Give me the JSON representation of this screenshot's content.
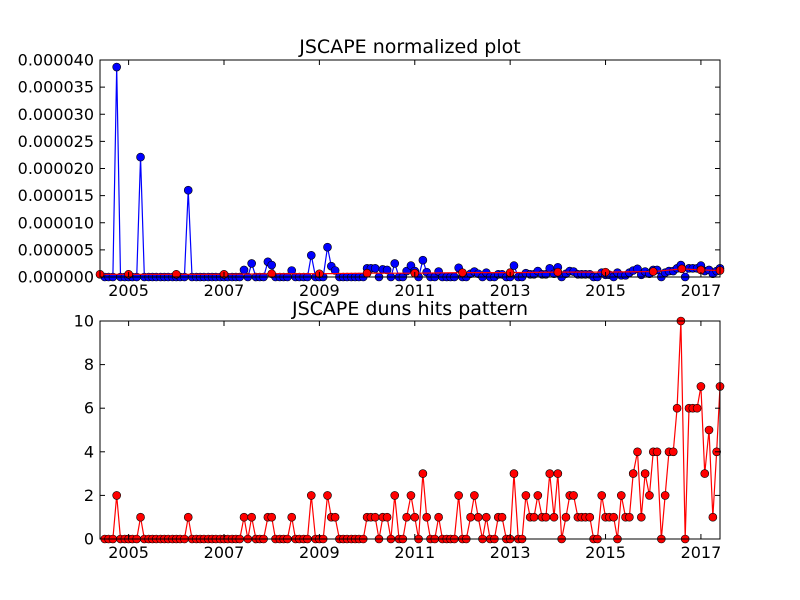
{
  "chart_data": [
    {
      "type": "line",
      "title": "JSCAPE normalized plot",
      "xlabel": "",
      "ylabel": "",
      "x_range": [
        2004.4,
        2017.4
      ],
      "ylim": [
        0,
        4e-05
      ],
      "x_ticks": [
        2005,
        2007,
        2009,
        2011,
        2013,
        2015,
        2017
      ],
      "y_ticks": [
        0.0,
        5e-06,
        1e-05,
        1.5e-05,
        2e-05,
        2.5e-05,
        3e-05,
        3.5e-05,
        4e-05
      ],
      "y_tick_labels": [
        "0.000000",
        "0.000005",
        "0.000010",
        "0.000015",
        "0.000020",
        "0.000025",
        "0.000030",
        "0.000035",
        "0.000040"
      ],
      "grid": false,
      "legend": "none",
      "series": [
        {
          "color": "#0000ff",
          "marker": "circle",
          "x": [
            2004.5,
            2004.58,
            2004.67,
            2004.75,
            2004.83,
            2004.92,
            2005.0,
            2005.08,
            2005.17,
            2005.25,
            2005.33,
            2005.42,
            2005.5,
            2005.58,
            2005.67,
            2005.75,
            2005.83,
            2005.92,
            2006.0,
            2006.08,
            2006.17,
            2006.25,
            2006.33,
            2006.42,
            2006.5,
            2006.58,
            2006.67,
            2006.75,
            2006.83,
            2006.92,
            2007.0,
            2007.08,
            2007.17,
            2007.25,
            2007.33,
            2007.42,
            2007.5,
            2007.58,
            2007.67,
            2007.75,
            2007.83,
            2007.92,
            2008.0,
            2008.08,
            2008.17,
            2008.25,
            2008.33,
            2008.42,
            2008.5,
            2008.58,
            2008.67,
            2008.75,
            2008.83,
            2008.92,
            2009.0,
            2009.08,
            2009.17,
            2009.25,
            2009.33,
            2009.42,
            2009.5,
            2009.58,
            2009.67,
            2009.75,
            2009.83,
            2009.92,
            2010.0,
            2010.08,
            2010.17,
            2010.25,
            2010.33,
            2010.42,
            2010.5,
            2010.58,
            2010.67,
            2010.75,
            2010.83,
            2010.92,
            2011.0,
            2011.08,
            2011.17,
            2011.25,
            2011.33,
            2011.42,
            2011.5,
            2011.58,
            2011.67,
            2011.75,
            2011.83,
            2011.92,
            2012.0,
            2012.08,
            2012.17,
            2012.25,
            2012.33,
            2012.42,
            2012.5,
            2012.58,
            2012.67,
            2012.75,
            2012.83,
            2012.92,
            2013.0,
            2013.08,
            2013.17,
            2013.25,
            2013.33,
            2013.42,
            2013.5,
            2013.58,
            2013.67,
            2013.75,
            2013.83,
            2013.92,
            2014.0,
            2014.08,
            2014.17,
            2014.25,
            2014.33,
            2014.42,
            2014.5,
            2014.58,
            2014.67,
            2014.75,
            2014.83,
            2014.92,
            2015.0,
            2015.08,
            2015.17,
            2015.25,
            2015.33,
            2015.42,
            2015.5,
            2015.58,
            2015.67,
            2015.75,
            2015.83,
            2015.92,
            2016.0,
            2016.08,
            2016.17,
            2016.25,
            2016.33,
            2016.42,
            2016.5,
            2016.58,
            2016.67,
            2016.75,
            2016.83,
            2016.92,
            2017.0,
            2017.08,
            2017.17,
            2017.25,
            2017.33,
            2017.4
          ],
          "values": [
            0.0,
            0.0,
            0.0,
            3.87e-05,
            0.0,
            0.0,
            0.0,
            0.0,
            0.0,
            2.21e-05,
            0.0,
            0.0,
            0.0,
            0.0,
            0.0,
            0.0,
            0.0,
            0.0,
            0.0,
            0.0,
            0.0,
            1.6e-05,
            0.0,
            0.0,
            0.0,
            0.0,
            0.0,
            0.0,
            0.0,
            0.0,
            0.0,
            0.0,
            0.0,
            0.0,
            0.0,
            1.3e-06,
            0.0,
            2.5e-06,
            0.0,
            0.0,
            0.0,
            2.8e-06,
            2.2e-06,
            0.0,
            0.0,
            0.0,
            0.0,
            1.2e-06,
            0.0,
            0.0,
            0.0,
            0.0,
            4e-06,
            0.0,
            0.0,
            0.0,
            5.5e-06,
            2e-06,
            1.2e-06,
            0.0,
            0.0,
            0.0,
            0.0,
            0.0,
            0.0,
            0.0,
            1.6e-06,
            1.6e-06,
            1.6e-06,
            0.0,
            1.4e-06,
            1.3e-06,
            0.0,
            2.5e-06,
            0.0,
            0.0,
            1.1e-06,
            2.1e-06,
            1.1e-06,
            0.0,
            3.1e-06,
            9e-07,
            0.0,
            0.0,
            1e-06,
            0.0,
            0.0,
            0.0,
            0.0,
            1.7e-06,
            0.0,
            0.0,
            6e-07,
            1e-06,
            6e-07,
            0.0,
            8e-07,
            0.0,
            0.0,
            5e-07,
            5e-07,
            0.0,
            0.0,
            2.1e-06,
            0.0,
            0.0,
            7e-07,
            5e-07,
            5e-07,
            1.1e-06,
            5e-07,
            5e-07,
            1.6e-06,
            6e-07,
            1.8e-06,
            0.0,
            6e-07,
            1.1e-06,
            1e-06,
            5e-07,
            5e-07,
            5e-07,
            5e-07,
            0.0,
            0.0,
            8e-07,
            4e-07,
            4e-07,
            0.0,
            8e-07,
            3e-07,
            3e-07,
            8e-07,
            1.2e-06,
            1.5e-06,
            4e-07,
            1e-06,
            6e-07,
            1.3e-06,
            1.3e-06,
            0.0,
            8e-07,
            1.1e-06,
            1.1e-06,
            1.6e-06,
            2.2e-06,
            0.0,
            1.6e-06,
            1.6e-06,
            1.6e-06,
            2.1e-06,
            1.1e-06,
            1.3e-06,
            6e-07,
            1.1e-06,
            1.6e-06
          ]
        },
        {
          "color": "#ff0000",
          "marker": "circle",
          "x": [
            2004.4,
            2005.0,
            2006.0,
            2007.0,
            2008.0,
            2009.0,
            2010.0,
            2011.0,
            2012.0,
            2013.0,
            2014.0,
            2015.0,
            2016.0,
            2016.6,
            2017.0,
            2017.4
          ],
          "values": [
            5e-07,
            5e-07,
            5e-07,
            5e-07,
            6e-07,
            6e-07,
            7e-07,
            7e-07,
            8e-07,
            8e-07,
            9e-07,
            9e-07,
            1e-06,
            1.5e-06,
            1.3e-06,
            1.2e-06
          ]
        }
      ]
    },
    {
      "type": "line",
      "title": "JSCAPE duns hits pattern",
      "xlabel": "",
      "ylabel": "",
      "x_range": [
        2004.4,
        2017.4
      ],
      "ylim": [
        0,
        10
      ],
      "x_ticks": [
        2005,
        2007,
        2009,
        2011,
        2013,
        2015,
        2017
      ],
      "y_ticks": [
        0,
        2,
        4,
        6,
        8,
        10
      ],
      "y_tick_labels": [
        "0",
        "2",
        "4",
        "6",
        "8",
        "10"
      ],
      "grid": false,
      "legend": "none",
      "series": [
        {
          "color": "#ff0000",
          "marker": "circle",
          "x": [
            2004.5,
            2004.58,
            2004.67,
            2004.75,
            2004.83,
            2004.92,
            2005.0,
            2005.08,
            2005.17,
            2005.25,
            2005.33,
            2005.42,
            2005.5,
            2005.58,
            2005.67,
            2005.75,
            2005.83,
            2005.92,
            2006.0,
            2006.08,
            2006.17,
            2006.25,
            2006.33,
            2006.42,
            2006.5,
            2006.58,
            2006.67,
            2006.75,
            2006.83,
            2006.92,
            2007.0,
            2007.08,
            2007.17,
            2007.25,
            2007.33,
            2007.42,
            2007.5,
            2007.58,
            2007.67,
            2007.75,
            2007.83,
            2007.92,
            2008.0,
            2008.08,
            2008.17,
            2008.25,
            2008.33,
            2008.42,
            2008.5,
            2008.58,
            2008.67,
            2008.75,
            2008.83,
            2008.92,
            2009.0,
            2009.08,
            2009.17,
            2009.25,
            2009.33,
            2009.42,
            2009.5,
            2009.58,
            2009.67,
            2009.75,
            2009.83,
            2009.92,
            2010.0,
            2010.08,
            2010.17,
            2010.25,
            2010.33,
            2010.42,
            2010.5,
            2010.58,
            2010.67,
            2010.75,
            2010.83,
            2010.92,
            2011.0,
            2011.08,
            2011.17,
            2011.25,
            2011.33,
            2011.42,
            2011.5,
            2011.58,
            2011.67,
            2011.75,
            2011.83,
            2011.92,
            2012.0,
            2012.08,
            2012.17,
            2012.25,
            2012.33,
            2012.42,
            2012.5,
            2012.58,
            2012.67,
            2012.75,
            2012.83,
            2012.92,
            2013.0,
            2013.08,
            2013.17,
            2013.25,
            2013.33,
            2013.42,
            2013.5,
            2013.58,
            2013.67,
            2013.75,
            2013.83,
            2013.92,
            2014.0,
            2014.08,
            2014.17,
            2014.25,
            2014.33,
            2014.42,
            2014.5,
            2014.58,
            2014.67,
            2014.75,
            2014.83,
            2014.92,
            2015.0,
            2015.08,
            2015.17,
            2015.25,
            2015.33,
            2015.42,
            2015.5,
            2015.58,
            2015.67,
            2015.75,
            2015.83,
            2015.92,
            2016.0,
            2016.08,
            2016.17,
            2016.25,
            2016.33,
            2016.42,
            2016.5,
            2016.58,
            2016.67,
            2016.75,
            2016.83,
            2016.92,
            2017.0,
            2017.08,
            2017.17,
            2017.25,
            2017.33,
            2017.4
          ],
          "values": [
            0,
            0,
            0,
            2,
            0,
            0,
            0,
            0,
            0,
            1,
            0,
            0,
            0,
            0,
            0,
            0,
            0,
            0,
            0,
            0,
            0,
            1,
            0,
            0,
            0,
            0,
            0,
            0,
            0,
            0,
            0,
            0,
            0,
            0,
            0,
            1,
            0,
            1,
            0,
            0,
            0,
            1,
            1,
            0,
            0,
            0,
            0,
            1,
            0,
            0,
            0,
            0,
            2,
            0,
            0,
            0,
            2,
            1,
            1,
            0,
            0,
            0,
            0,
            0,
            0,
            0,
            1,
            1,
            1,
            0,
            1,
            1,
            0,
            2,
            0,
            0,
            1,
            2,
            1,
            0,
            3,
            1,
            0,
            0,
            1,
            0,
            0,
            0,
            0,
            2,
            0,
            0,
            1,
            2,
            1,
            0,
            1,
            0,
            0,
            1,
            1,
            0,
            0,
            3,
            0,
            0,
            2,
            1,
            1,
            2,
            1,
            1,
            3,
            1,
            3,
            0,
            1,
            2,
            2,
            1,
            1,
            1,
            1,
            0,
            0,
            2,
            1,
            1,
            1,
            0,
            2,
            1,
            1,
            3,
            4,
            1,
            3,
            2,
            4,
            4,
            0,
            2,
            4,
            4,
            6,
            10,
            0,
            6,
            6,
            6,
            7,
            3,
            5,
            1,
            4,
            7
          ]
        }
      ]
    }
  ]
}
